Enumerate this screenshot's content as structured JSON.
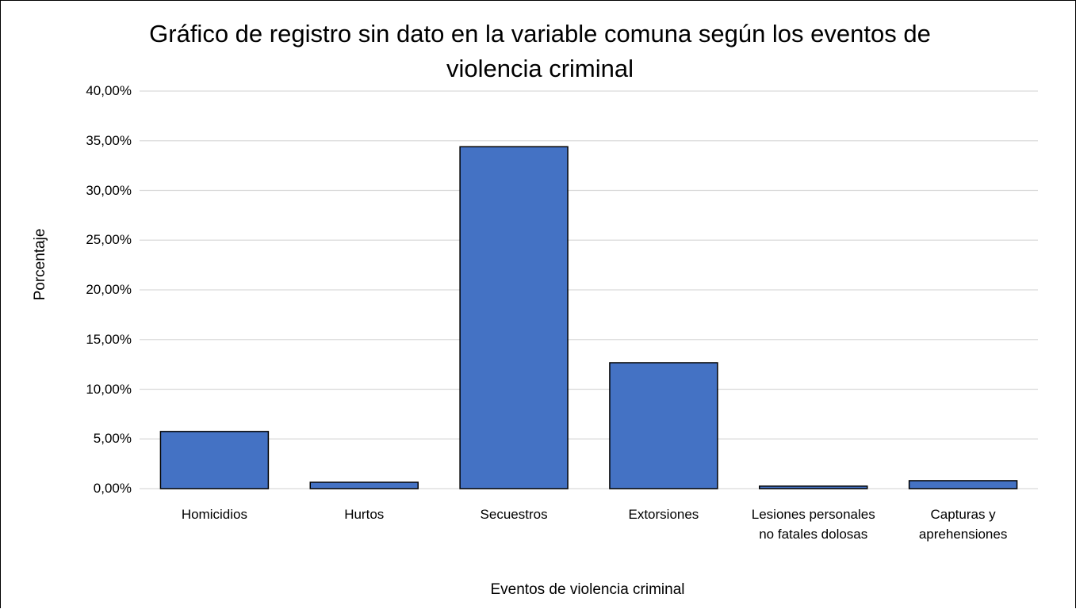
{
  "chart_data": {
    "type": "bar",
    "title": "Gráfico de registro sin dato en la variable comuna según los eventos de violencia criminal",
    "x_label": "Eventos de violencia criminal",
    "y_label": "Porcentaje",
    "categories": [
      "Homicidios",
      "Hurtos",
      "Secuestros",
      "Extorsiones",
      "Lesiones personales no fatales dolosas",
      "Capturas y aprehensiones"
    ],
    "values": [
      5.75,
      0.64,
      34.4,
      12.67,
      0.25,
      0.8
    ],
    "color": "#4472c4",
    "ylim": [
      0,
      40
    ],
    "yticks": [
      {
        "value": 0,
        "label": "0,00%"
      },
      {
        "value": 5,
        "label": "5,00%"
      },
      {
        "value": 10,
        "label": "10,00%"
      },
      {
        "value": 15,
        "label": "15,00%"
      },
      {
        "value": 20,
        "label": "20,00%"
      },
      {
        "value": 25,
        "label": "25,00%"
      },
      {
        "value": 30,
        "label": "30,00%"
      },
      {
        "value": 35,
        "label": "35,00%"
      },
      {
        "value": 40,
        "label": "40,00%"
      }
    ],
    "grid": true
  }
}
